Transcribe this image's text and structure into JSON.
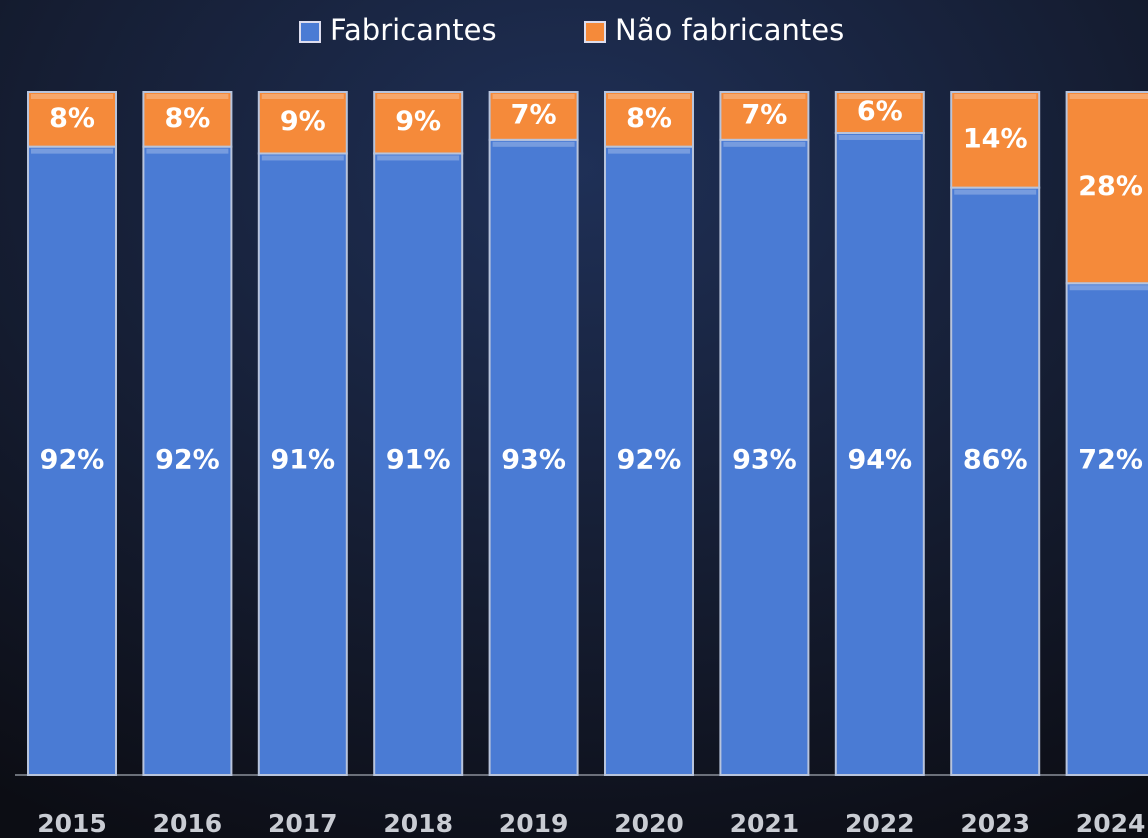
{
  "chart_data": {
    "type": "stacked_bar",
    "categories": [
      "2015",
      "2016",
      "2017",
      "2018",
      "2019",
      "2020",
      "2021",
      "2022",
      "2023",
      "2024"
    ],
    "series": [
      {
        "name": "Fabricantes",
        "color": "#4a7bd4",
        "values": [
          92,
          92,
          91,
          91,
          93,
          92,
          93,
          94,
          86,
          72
        ],
        "value_labels": [
          "92%",
          "92%",
          "91%",
          "91%",
          "93%",
          "92%",
          "93%",
          "94%",
          "86%",
          "72%"
        ]
      },
      {
        "name": "Não fabricantes",
        "color": "#f58a3a",
        "values": [
          8,
          8,
          9,
          9,
          7,
          8,
          7,
          6,
          14,
          28
        ],
        "value_labels": [
          "8%",
          "8%",
          "9%",
          "9%",
          "7%",
          "8%",
          "7%",
          "6%",
          "14%",
          "28%"
        ]
      }
    ],
    "legend": "top"
  }
}
